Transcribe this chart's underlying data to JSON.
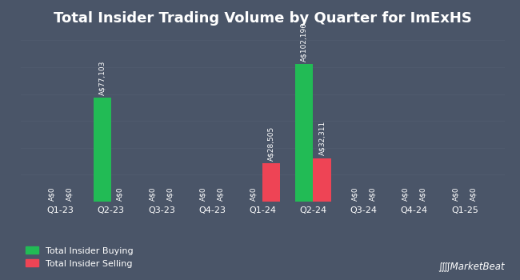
{
  "title": "Total Insider Trading Volume by Quarter for ImExHS",
  "quarters": [
    "Q1-23",
    "Q2-23",
    "Q3-23",
    "Q4-23",
    "Q1-24",
    "Q2-24",
    "Q3-24",
    "Q4-24",
    "Q1-25"
  ],
  "buying": [
    0,
    77103,
    0,
    0,
    0,
    102196,
    0,
    0,
    0
  ],
  "selling": [
    0,
    0,
    0,
    0,
    28505,
    32311,
    0,
    0,
    0
  ],
  "buy_color": "#22bb55",
  "sell_color": "#ee4455",
  "bg_color": "#4a5568",
  "plot_bg_color": "#4a5568",
  "text_color": "#ffffff",
  "grid_color": "#5a6678",
  "bar_width": 0.35,
  "title_fontsize": 13,
  "label_fontsize": 6.5,
  "tick_fontsize": 8,
  "legend_fontsize": 8,
  "ylim": [
    0,
    125000
  ],
  "legend_labels": [
    "Total Insider Buying",
    "Total Insider Selling"
  ],
  "zero_label": "A$0"
}
